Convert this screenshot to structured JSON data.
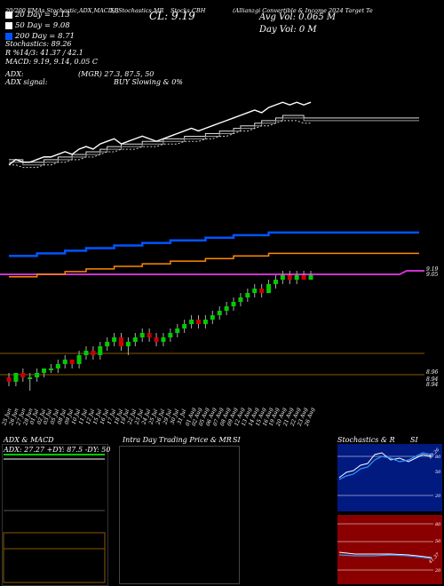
{
  "header": {
    "top_left": "20/200  EMAs,Stochastic,ADX,MACD,B",
    "top_mid": "SI,Stochastics,MR",
    "company": "(Allianzgi Convertible & Income 2024 Target Te",
    "symbol": "Stocks CBH",
    "cl": "CL: 9.19",
    "avg_vol": "Avg Vol: 0.065 M",
    "day_vol": "Day Vol: 0   M"
  },
  "legend": [
    {
      "color": "#ffffff",
      "text": "20  Day = 9.13"
    },
    {
      "color": "#ffffff",
      "text": "50  Day = 9.08"
    },
    {
      "color": "#0055ff",
      "text": "200  Day = 8.71"
    }
  ],
  "indicators": [
    "Stochastics: 89.26",
    "R             %14/3: 41.37 / 42.1",
    "MACD: 9.19, 9.14, 0.05 C"
  ],
  "adx_line": {
    "label": "ADX:",
    "value": "(MGR) 27.3,  87.5,  50"
  },
  "adx_signal": {
    "label": "ADX  signal:",
    "value": "BUY Slowing & 0%"
  },
  "price_labels": [
    "9.19",
    "9.05"
  ],
  "lower_labels": [
    "8.96",
    "8.94",
    "8.94"
  ],
  "dates": [
    "25 Jun",
    "26 Jun",
    "27 Jun",
    "28 Jun",
    "01 Jul",
    "02 Jul",
    "03 Jul",
    "05 Jul",
    "08 Jul",
    "09 Jul",
    "10 Jul",
    "11 Jul",
    "12 Jul",
    "15 Jul",
    "16 Jul",
    "17 Jul",
    "18 Jul",
    "19 Jul",
    "22 Jul",
    "23 Jul",
    "24 Jul",
    "25 Jul",
    "26 Jul",
    "29 Jul",
    "30 Jul",
    "31 Jul",
    "01 Aug",
    "02 Aug",
    "05 Aug",
    "06 Aug",
    "07 Aug",
    "08 Aug",
    "09 Aug",
    "12 Aug",
    "13 Aug",
    "14 Aug",
    "15 Aug",
    "16 Aug",
    "19 Aug",
    "20 Aug",
    "21 Aug",
    "22 Aug",
    "23 Aug",
    "26 Aug"
  ],
  "panels": {
    "adx": {
      "title": "ADX  & MACD",
      "readout": "ADX: 27.27  +DY: 87.5  -DY: 50"
    },
    "intraday": {
      "title": "Intra Day Trading Price  & MR",
      "suffix": "SI"
    },
    "stoch": {
      "title": "Stochastics & R",
      "suffix": "SI",
      "ticks": [
        "80",
        "50",
        "20"
      ],
      "value_label": "89.26",
      "ticks2": [
        "80",
        "50",
        "20"
      ],
      "value_label2": "41.37"
    }
  },
  "colors": {
    "ema20": "#ffffff",
    "ema200": "#0055ff",
    "bollinger": "#ff8800",
    "up": "#00cc00",
    "down": "#cc0000",
    "magenta": "#cc33cc"
  },
  "chart_data": {
    "type": "candlestick",
    "title": "",
    "x": [
      "25 Jun",
      "26 Jun",
      "27 Jun",
      "28 Jun",
      "01 Jul",
      "02 Jul",
      "03 Jul",
      "05 Jul",
      "08 Jul",
      "09 Jul",
      "10 Jul",
      "11 Jul",
      "12 Jul",
      "15 Jul",
      "16 Jul",
      "17 Jul",
      "18 Jul",
      "19 Jul",
      "22 Jul",
      "23 Jul",
      "24 Jul",
      "25 Jul",
      "26 Jul",
      "29 Jul",
      "30 Jul",
      "31 Jul",
      "01 Aug",
      "02 Aug",
      "05 Aug",
      "06 Aug",
      "07 Aug",
      "08 Aug",
      "09 Aug",
      "12 Aug",
      "13 Aug",
      "14 Aug",
      "15 Aug",
      "16 Aug",
      "19 Aug",
      "20 Aug",
      "21 Aug",
      "22 Aug",
      "23 Aug",
      "26 Aug"
    ],
    "ohlc": [
      [
        8.96,
        8.97,
        8.94,
        8.95
      ],
      [
        8.95,
        8.97,
        8.94,
        8.97
      ],
      [
        8.97,
        8.98,
        8.95,
        8.96
      ],
      [
        8.96,
        8.97,
        8.93,
        8.96
      ],
      [
        8.96,
        8.98,
        8.95,
        8.97
      ],
      [
        8.97,
        8.98,
        8.96,
        8.98
      ],
      [
        8.98,
        8.99,
        8.97,
        8.98
      ],
      [
        8.98,
        9.0,
        8.97,
        8.99
      ],
      [
        8.99,
        9.01,
        8.98,
        9.0
      ],
      [
        9.0,
        9.0,
        8.98,
        8.99
      ],
      [
        8.99,
        9.02,
        8.98,
        9.01
      ],
      [
        9.01,
        9.03,
        9.0,
        9.02
      ],
      [
        9.02,
        9.03,
        9.0,
        9.01
      ],
      [
        9.01,
        9.04,
        9.0,
        9.03
      ],
      [
        9.03,
        9.05,
        9.02,
        9.04
      ],
      [
        9.04,
        9.06,
        9.03,
        9.05
      ],
      [
        9.05,
        9.06,
        9.02,
        9.03
      ],
      [
        9.03,
        9.05,
        9.01,
        9.04
      ],
      [
        9.04,
        9.06,
        9.03,
        9.05
      ],
      [
        9.05,
        9.07,
        9.04,
        9.06
      ],
      [
        9.06,
        9.07,
        9.04,
        9.05
      ],
      [
        9.05,
        9.06,
        9.03,
        9.04
      ],
      [
        9.04,
        9.06,
        9.03,
        9.05
      ],
      [
        9.05,
        9.07,
        9.04,
        9.06
      ],
      [
        9.06,
        9.08,
        9.05,
        9.07
      ],
      [
        9.07,
        9.09,
        9.06,
        9.08
      ],
      [
        9.08,
        9.1,
        9.07,
        9.09
      ],
      [
        9.09,
        9.1,
        9.07,
        9.08
      ],
      [
        9.08,
        9.1,
        9.07,
        9.09
      ],
      [
        9.09,
        9.11,
        9.08,
        9.1
      ],
      [
        9.1,
        9.12,
        9.09,
        9.11
      ],
      [
        9.11,
        9.13,
        9.1,
        9.12
      ],
      [
        9.12,
        9.14,
        9.11,
        9.13
      ],
      [
        9.13,
        9.15,
        9.12,
        9.14
      ],
      [
        9.14,
        9.16,
        9.13,
        9.15
      ],
      [
        9.15,
        9.17,
        9.14,
        9.16
      ],
      [
        9.16,
        9.17,
        9.14,
        9.15
      ],
      [
        9.15,
        9.18,
        9.15,
        9.17
      ],
      [
        9.17,
        9.19,
        9.16,
        9.18
      ],
      [
        9.18,
        9.2,
        9.17,
        9.19
      ],
      [
        9.19,
        9.2,
        9.17,
        9.18
      ],
      [
        9.18,
        9.2,
        9.17,
        9.19
      ],
      [
        9.19,
        9.2,
        9.18,
        9.18
      ],
      [
        9.18,
        9.2,
        9.18,
        9.19
      ]
    ],
    "series": [
      {
        "name": "20 Day",
        "values": [
          8.97,
          8.97,
          8.96,
          8.96,
          8.96,
          8.97,
          8.97,
          8.98,
          8.98,
          8.99,
          8.99,
          9.0,
          9.0,
          9.01,
          9.02,
          9.02,
          9.03,
          9.03,
          9.03,
          9.04,
          9.04,
          9.04,
          9.05,
          9.05,
          9.05,
          9.06,
          9.06,
          9.06,
          9.07,
          9.07,
          9.08,
          9.08,
          9.09,
          9.1,
          9.1,
          9.11,
          9.12,
          9.12,
          9.13,
          9.14,
          9.14,
          9.14,
          9.13,
          9.13
        ]
      },
      {
        "name": "200 Day",
        "values": [
          8.62,
          8.62,
          8.62,
          8.62,
          8.63,
          8.63,
          8.63,
          8.63,
          8.64,
          8.64,
          8.64,
          8.65,
          8.65,
          8.65,
          8.65,
          8.66,
          8.66,
          8.66,
          8.66,
          8.67,
          8.67,
          8.67,
          8.67,
          8.68,
          8.68,
          8.68,
          8.68,
          8.68,
          8.69,
          8.69,
          8.69,
          8.69,
          8.7,
          8.7,
          8.7,
          8.7,
          8.7,
          8.71,
          8.71,
          8.71,
          8.71,
          8.71,
          8.71,
          8.71
        ]
      }
    ]
  }
}
